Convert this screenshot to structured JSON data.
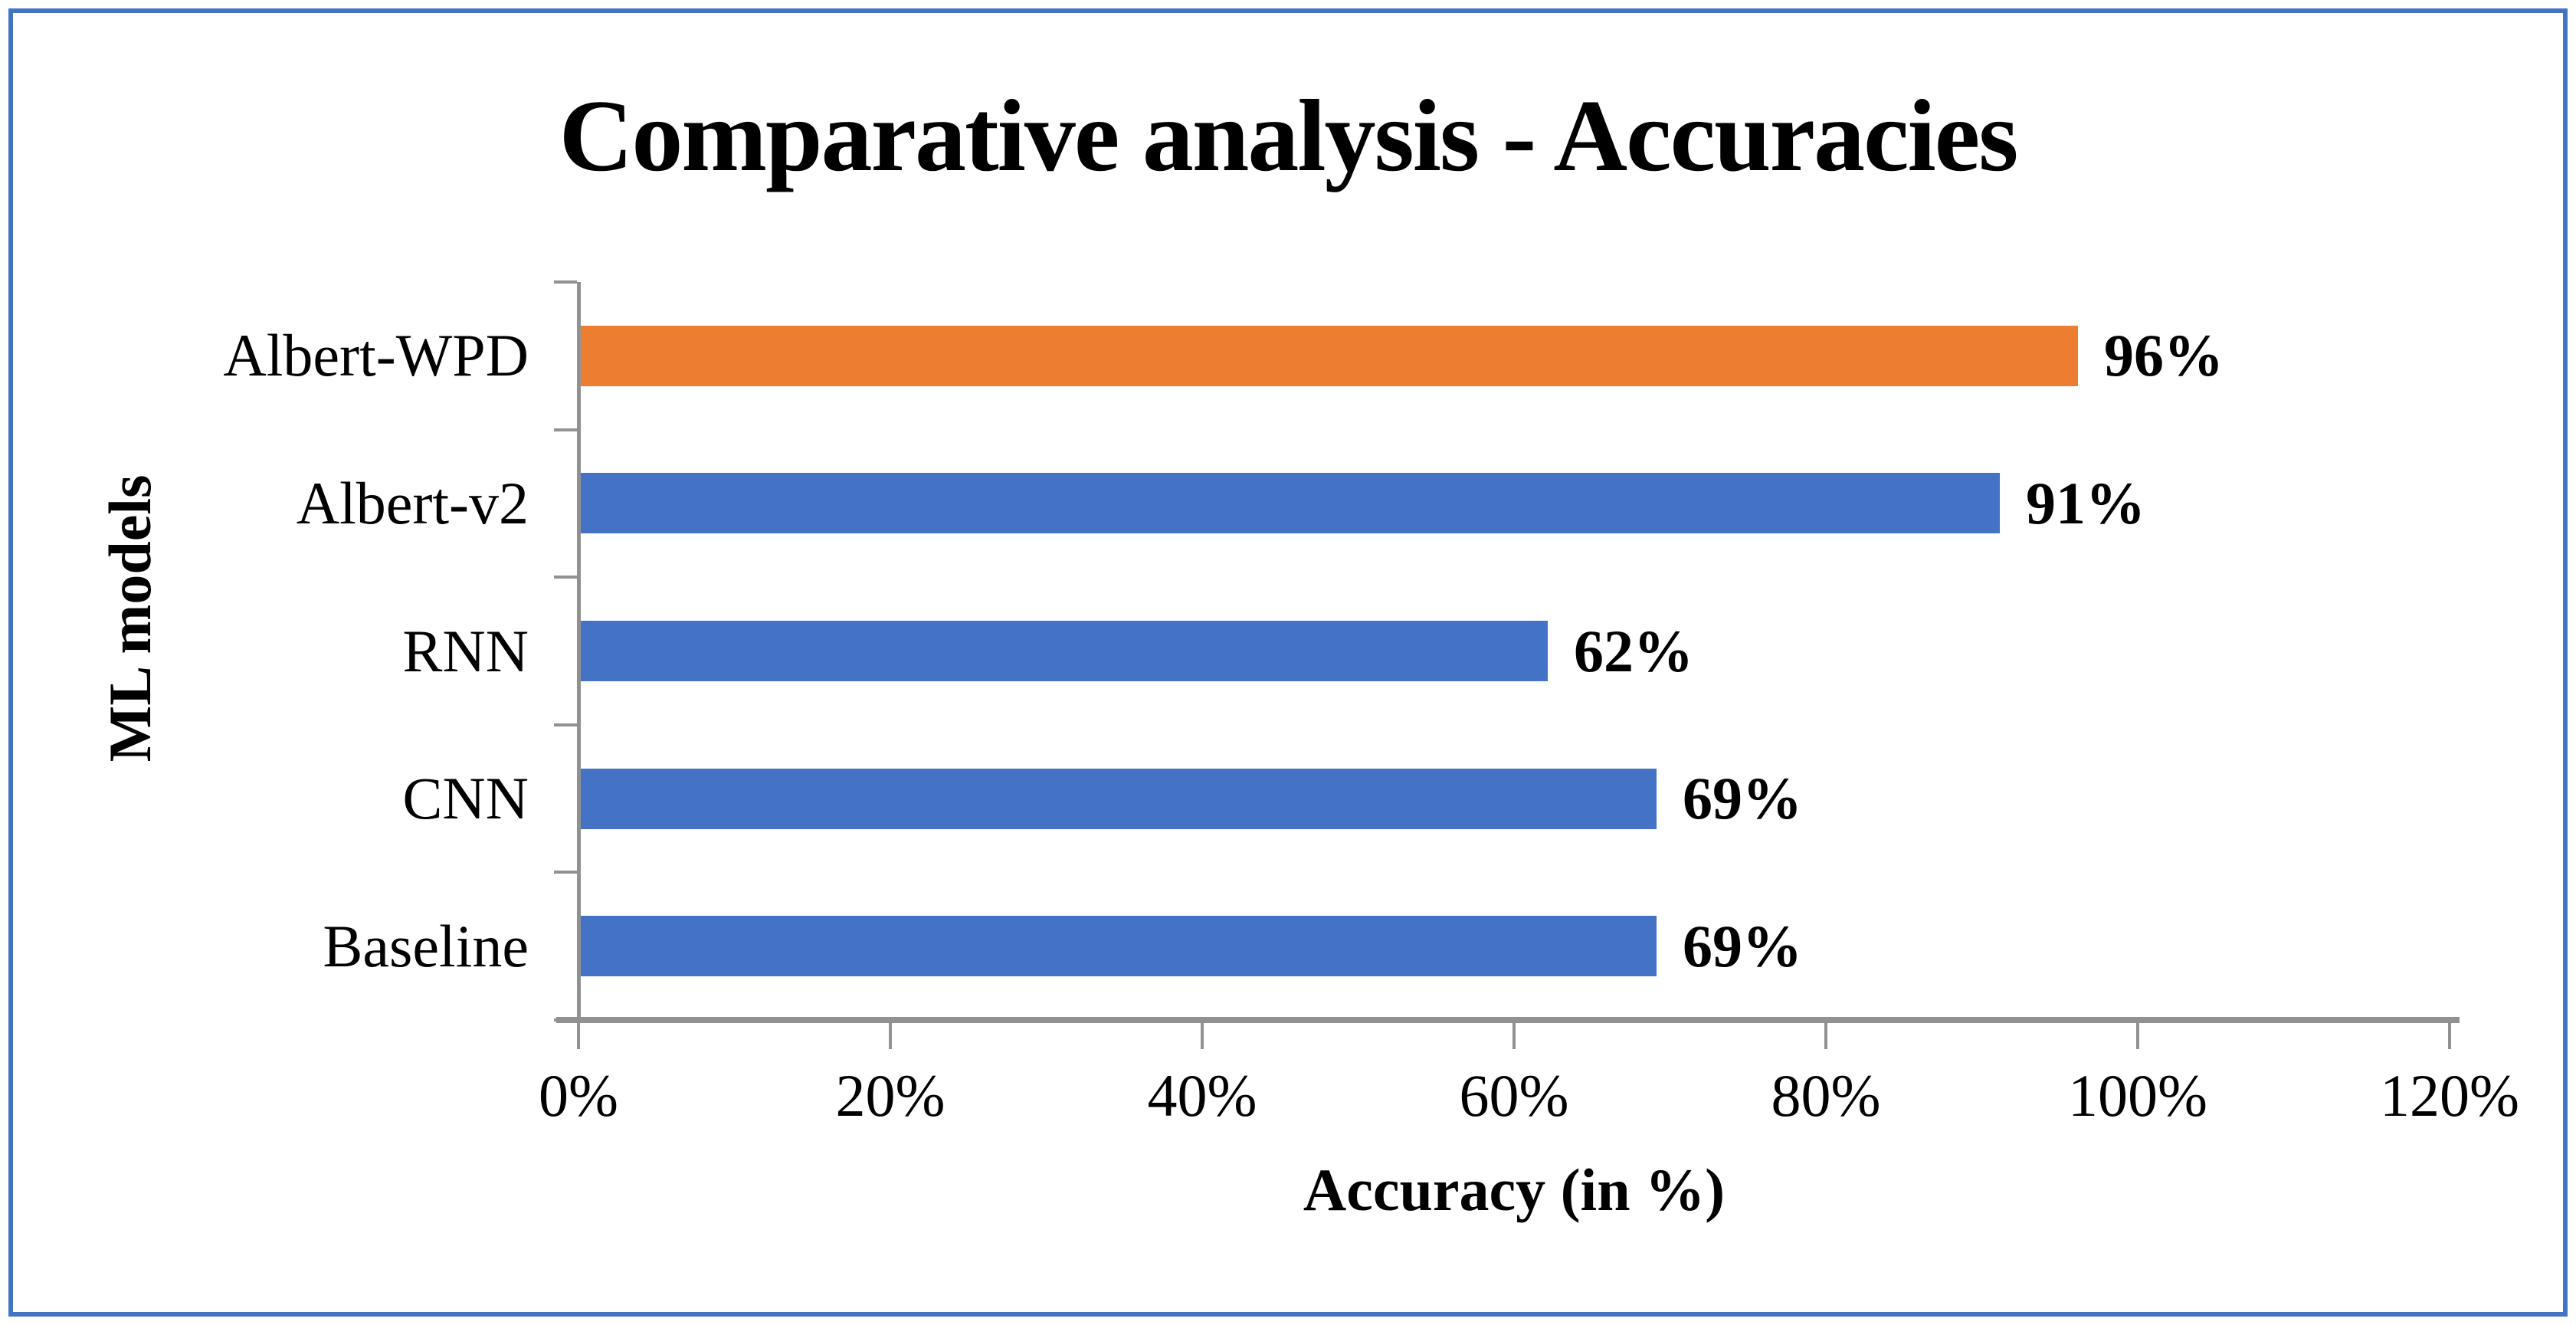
{
  "chart_data": {
    "type": "bar",
    "orientation": "horizontal",
    "title": "Comparative analysis - Accuracies",
    "xlabel": "Accuracy (in %)",
    "ylabel": "ML models",
    "categories": [
      "Albert-WPD",
      "Albert-v2",
      "RNN",
      "CNN",
      "Baseline"
    ],
    "values": [
      96,
      91,
      62,
      69,
      69
    ],
    "value_labels": [
      "96%",
      "91%",
      "62%",
      "69%",
      "69%"
    ],
    "bar_colors": [
      "#ED7D31",
      "#4472C4",
      "#4472C4",
      "#4472C4",
      "#4472C4"
    ],
    "x_ticks": [
      "0%",
      "20%",
      "40%",
      "60%",
      "80%",
      "100%",
      "120%"
    ],
    "x_tick_values": [
      0,
      20,
      40,
      60,
      80,
      100,
      120
    ],
    "xlim": [
      0,
      120
    ],
    "grid": false,
    "legend_visible": false,
    "colors": {
      "bar_blue": "#4472C4",
      "bar_orange": "#ED7D31",
      "axis": "#919191",
      "frame_border": "#4472C4",
      "text": "#000000",
      "background": "#FFFFFF"
    }
  }
}
